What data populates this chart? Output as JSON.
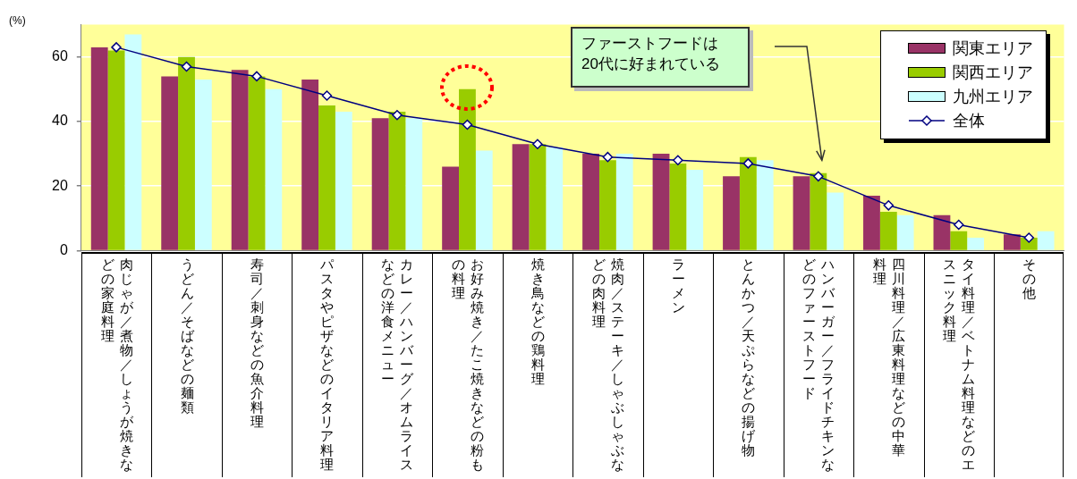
{
  "chart_data": {
    "type": "bar",
    "ylabel": "(%)",
    "categories": [
      "肉じゃが／煮物／しょうが焼きなどの家庭料理",
      "うどん／そばなどの麺類",
      "寿司／刺身などの魚介料理",
      "パスタやピザなどのイタリア料理",
      "カレー／ハンバーグ／オムライスなどの洋食メニュー",
      "お好み焼き／たこ焼きなどの粉もの料理",
      "焼き鳥などの鶏料理",
      "焼肉／ステーキ／しゃぶしゃぶなどの肉料理",
      "ラーメン",
      "とんかつ／天ぷらなどの揚げ物",
      "ハンバーガー／フライドチキンなどのファーストフード",
      "四川料理／広東料理などの中華料理",
      "タイ料理／ベトナム料理などのエスニック料理",
      "その他"
    ],
    "series": [
      {
        "name": "関東エリア",
        "color": "#993366",
        "values": [
          63,
          54,
          56,
          53,
          41,
          26,
          33,
          30,
          30,
          23,
          23,
          17,
          11,
          5
        ]
      },
      {
        "name": "関西エリア",
        "color": "#99cc00",
        "values": [
          62,
          60,
          54,
          45,
          43,
          50,
          33,
          28,
          27,
          29,
          24,
          12,
          6,
          4
        ]
      },
      {
        "name": "九州エリア",
        "color": "#ccffff",
        "values": [
          67,
          53,
          50,
          43,
          41,
          31,
          32,
          30,
          25,
          28,
          18,
          11,
          4,
          6
        ]
      },
      {
        "name": "全体",
        "type": "line",
        "color": "#000080",
        "marker": "diamond",
        "values": [
          63,
          57,
          54,
          48,
          42,
          39,
          33,
          29,
          28,
          27,
          23,
          14,
          8,
          4
        ]
      }
    ],
    "ylim": [
      0,
      70
    ],
    "yticks": [
      0,
      20,
      40,
      60
    ],
    "grid": "y",
    "legend": "top right",
    "annotations": [
      "ファーストフードは\n20代に好まれている"
    ]
  }
}
